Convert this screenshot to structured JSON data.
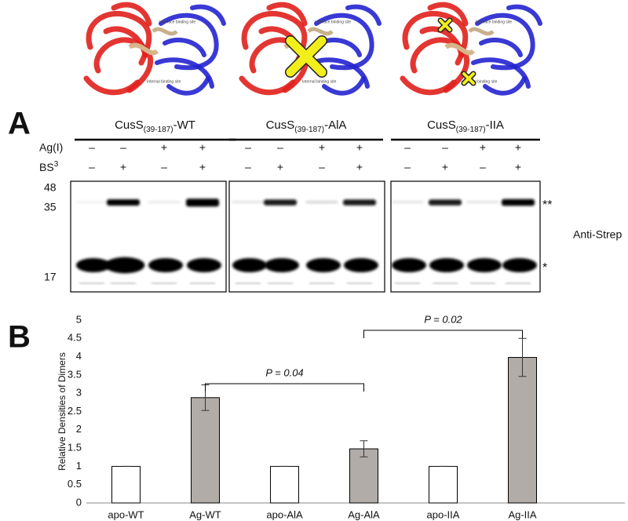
{
  "figure": {
    "structures": [
      {
        "labels": [
          "Interface binding site",
          "Internal binding site"
        ]
      },
      {
        "labels": [
          "Interface binding site",
          "Internal binding site"
        ]
      },
      {
        "labels": [
          "Interface binding site",
          "Internal binding site"
        ]
      }
    ],
    "panel_a": {
      "label": "A",
      "gels": [
        {
          "name": "CusS",
          "subscript": "(39-187)",
          "suffix": "-WT",
          "ag_signs": [
            "–",
            "–",
            "+",
            "+"
          ],
          "bs3_signs": [
            "–",
            "+",
            "–",
            "+"
          ]
        },
        {
          "name": "CusS",
          "subscript": "(39-187)",
          "suffix": "-AlA",
          "ag_signs": [
            "–",
            "–",
            "+",
            "+"
          ],
          "bs3_signs": [
            "–",
            "+",
            "–",
            "+"
          ]
        },
        {
          "name": "CusS",
          "subscript": "(39-187)",
          "suffix": "-IIA",
          "ag_signs": [
            "–",
            "–",
            "+",
            "+"
          ],
          "bs3_signs": [
            "–",
            "+",
            "–",
            "+"
          ]
        }
      ],
      "row_labels": {
        "ag": "Ag(I)",
        "bs3": "BS",
        "bs3_superscript": "3"
      },
      "markers": [
        "48",
        "35",
        "17"
      ],
      "band_labels": {
        "dimer": "**",
        "monomer": "*"
      },
      "antibody": "Anti-Strep"
    },
    "panel_b": {
      "label": "B"
    }
  },
  "chart_data": {
    "type": "bar",
    "y_label": "Relative Densities of Dimers",
    "categories": [
      "apo-WT",
      "Ag-WT",
      "apo-AlA",
      "Ag-AlA",
      "apo-IIA",
      "Ag-IIA"
    ],
    "values": [
      1,
      2.88,
      1,
      1.48,
      1,
      3.98
    ],
    "errors": [
      0,
      0.35,
      0,
      0.22,
      0,
      0.52
    ],
    "colors": [
      "#ffffff",
      "#b1aca8",
      "#ffffff",
      "#b1aca8",
      "#ffffff",
      "#b1aca8"
    ],
    "ylim": [
      0,
      5
    ],
    "yticks": [
      0,
      0.5,
      1,
      1.5,
      2,
      2.5,
      3,
      3.5,
      4,
      4.5,
      5
    ],
    "annotations": [
      "P = 0.04",
      "P = 0.02"
    ]
  }
}
